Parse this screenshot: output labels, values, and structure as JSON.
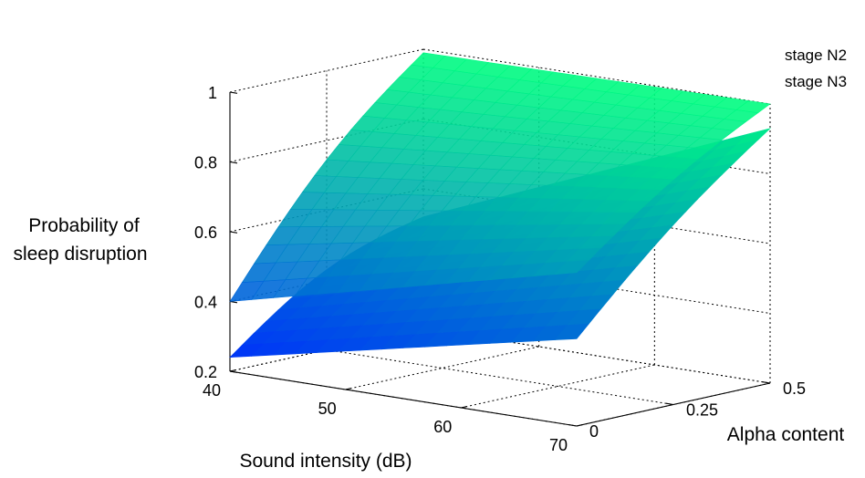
{
  "chart_data": {
    "type": "surface",
    "zlabel_lines": [
      "Probability of",
      "sleep disruption"
    ],
    "xlabel": "Sound intensity (dB)",
    "ylabel": "Alpha content",
    "x_ticks": [
      "40",
      "50",
      "60",
      "70"
    ],
    "y_ticks": [
      "0",
      "0.25",
      "0.5"
    ],
    "z_ticks": [
      "0.2",
      "0.4",
      "0.6",
      "0.8",
      "1"
    ],
    "xlim": [
      40,
      70
    ],
    "ylim": [
      0,
      0.5
    ],
    "zlim": [
      0.2,
      1.0
    ],
    "grid": true,
    "colormap": "winter (blue to green)",
    "series": [
      {
        "name": "stage N2",
        "corners": [
          {
            "x": 40,
            "y": 0,
            "z": 0.4
          },
          {
            "x": 70,
            "y": 0,
            "z": 0.64
          },
          {
            "x": 40,
            "y": 0.5,
            "z": 0.99
          },
          {
            "x": 70,
            "y": 0.5,
            "z": 1.0
          }
        ]
      },
      {
        "name": "stage N3",
        "corners": [
          {
            "x": 40,
            "y": 0,
            "z": 0.24
          },
          {
            "x": 70,
            "y": 0,
            "z": 0.45
          },
          {
            "x": 40,
            "y": 0.5,
            "z": 0.52
          },
          {
            "x": 70,
            "y": 0.5,
            "z": 0.93
          }
        ]
      }
    ]
  }
}
